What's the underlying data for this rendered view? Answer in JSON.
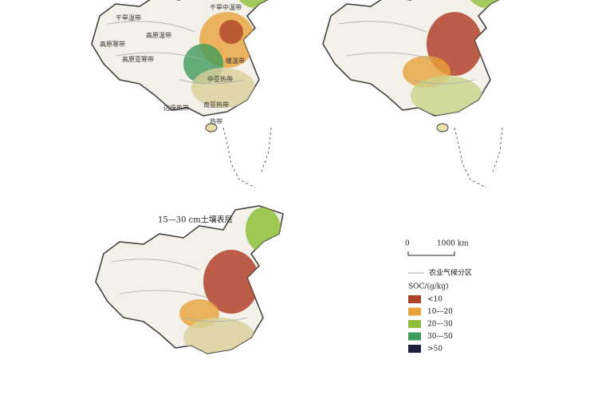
{
  "map1": {
    "zone_labels": [
      "干旱温带",
      "干旱中温带",
      "高原温带",
      "高原寒带",
      "高原亚寒带",
      "暖温带",
      "中亚热带",
      "南亚热带",
      "边缘热带",
      "热带"
    ]
  },
  "map3": {
    "title": "15—30 cm土壤表层"
  },
  "scale_bar": {
    "start": "0",
    "end": "1000 km"
  },
  "legend": {
    "zone_line": "农业气候分区",
    "title": "SOC/(g/kg)",
    "items": [
      {
        "label": "<10",
        "color": "#b0432c"
      },
      {
        "label": "10—20",
        "color": "#e8a33a"
      },
      {
        "label": "20—30",
        "color": "#8fbf3a"
      },
      {
        "label": "30—50",
        "color": "#3f9a5a"
      },
      {
        "label": ">50",
        "color": "#1d1f3d"
      }
    ]
  }
}
